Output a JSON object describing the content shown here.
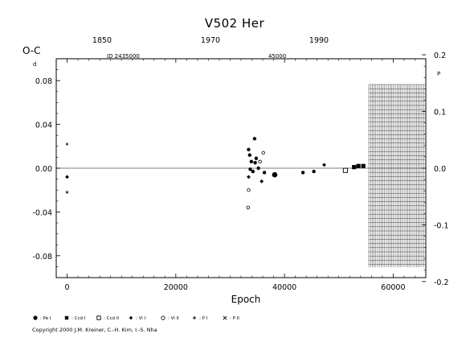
{
  "chart_data": {
    "type": "scatter",
    "title": "V502  Her",
    "ylabel": "O-C",
    "xlabel": "Epoch",
    "ylabel_unit": "d",
    "right_unit": "P",
    "xlim": [
      -2000,
      66000
    ],
    "ylim": [
      -0.1,
      0.1
    ],
    "x_ticks": [
      "0",
      "20000",
      "40000",
      "60000"
    ],
    "y_ticks": [
      "0.08",
      "0.04",
      "0.00",
      "-0.04",
      "-0.08"
    ],
    "right_ticks": [
      "0.2",
      "0.1",
      "0.0",
      "-0.1",
      "-0.2"
    ],
    "top_years": [
      "1850",
      "1970",
      "1990"
    ],
    "jd_labels": [
      "JD  2435000",
      "45000"
    ],
    "hatched_from_epoch": 55500,
    "series": [
      {
        "name": "Pe I",
        "marker": "filled-circle",
        "points": [
          {
            "x": 33400,
            "y": 0.017
          },
          {
            "x": 34500,
            "y": 0.027
          },
          {
            "x": 33600,
            "y": 0.012
          },
          {
            "x": 34800,
            "y": 0.009
          },
          {
            "x": 33900,
            "y": 0.006
          },
          {
            "x": 34600,
            "y": 0.005
          },
          {
            "x": 33700,
            "y": -0.001
          },
          {
            "x": 34200,
            "y": -0.003
          },
          {
            "x": 35200,
            "y": 0.0
          },
          {
            "x": 36300,
            "y": -0.004
          },
          {
            "x": 38200,
            "y": -0.006
          },
          {
            "x": 43400,
            "y": -0.004
          },
          {
            "x": 45400,
            "y": -0.003
          }
        ]
      },
      {
        "name": "Ccd I",
        "marker": "filled-square",
        "points": [
          {
            "x": 52800,
            "y": 0.001
          },
          {
            "x": 53600,
            "y": 0.002
          },
          {
            "x": 54500,
            "y": 0.002
          }
        ]
      },
      {
        "name": "Ccd II",
        "marker": "open-square",
        "points": [
          {
            "x": 51200,
            "y": -0.002
          }
        ]
      },
      {
        "name": "Vi I",
        "marker": "diamond",
        "points": [
          {
            "x": 0,
            "y": -0.008
          },
          {
            "x": 33400,
            "y": -0.008
          },
          {
            "x": 35800,
            "y": -0.012
          },
          {
            "x": 47300,
            "y": 0.003
          }
        ]
      },
      {
        "name": "Vi II",
        "marker": "open-circle",
        "points": [
          {
            "x": 33400,
            "y": -0.02
          },
          {
            "x": 33300,
            "y": -0.036
          },
          {
            "x": 35500,
            "y": 0.006
          },
          {
            "x": 36100,
            "y": 0.014
          }
        ]
      },
      {
        "name": "P I",
        "marker": "plus",
        "points": [
          {
            "x": 0,
            "y": 0.022
          }
        ]
      },
      {
        "name": "P II",
        "marker": "cross",
        "points": [
          {
            "x": 0,
            "y": -0.022
          }
        ]
      }
    ]
  },
  "copyright": "Copyright 2000 J.M. Kreiner, C.-H. Kim, I.-S. Nha"
}
